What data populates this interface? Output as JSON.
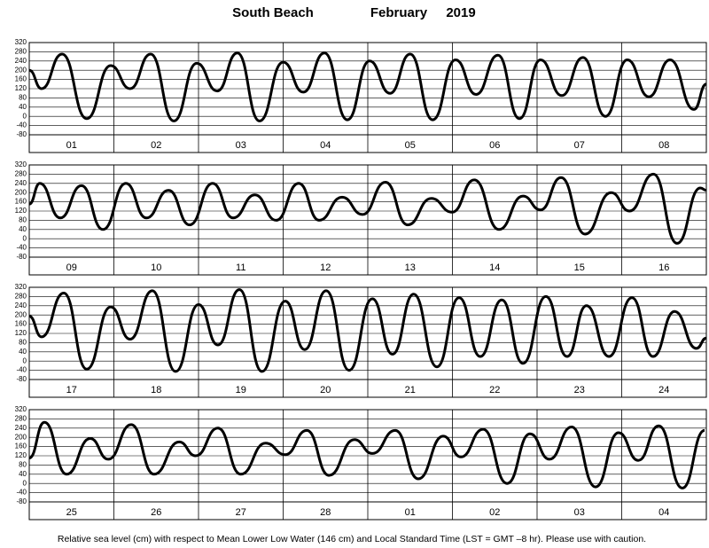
{
  "header": {
    "location": "South Beach",
    "month": "February",
    "year": "2019"
  },
  "footnote": "Relative sea level (cm) with respect to Mean Lower Low Water (146 cm) and Local Standard Time (LST = GMT –8 hr). Please use with caution.",
  "chart_data": [
    {
      "type": "line",
      "grid": true,
      "xlim": [
        0,
        192
      ],
      "ylim": [
        -80,
        320
      ],
      "yticks": [
        320,
        280,
        240,
        200,
        160,
        120,
        80,
        40,
        0,
        -40,
        -80
      ],
      "xticks": [
        {
          "value": 12,
          "label": "01"
        },
        {
          "value": 36,
          "label": "02"
        },
        {
          "value": 60,
          "label": "03"
        },
        {
          "value": 84,
          "label": "04"
        },
        {
          "value": 108,
          "label": "05"
        },
        {
          "value": 132,
          "label": "06"
        },
        {
          "value": 156,
          "label": "07"
        },
        {
          "value": 180,
          "label": "08"
        }
      ],
      "x": [
        0,
        3.5,
        9.3,
        16.3,
        23.1,
        28.6,
        34.4,
        41,
        47.5,
        53.3,
        59,
        65.3,
        72,
        77.7,
        83.7,
        90.2,
        96.5,
        102.3,
        108,
        114.4,
        120.9,
        126.7,
        132.9,
        139,
        145,
        151,
        157,
        163.4,
        169.6,
        175.7,
        181.7,
        188.5,
        192
      ],
      "series": [
        {
          "color": "#000000",
          "values": [
            200,
            120,
            270,
            -10,
            220,
            120,
            270,
            -20,
            230,
            110,
            275,
            -20,
            235,
            105,
            275,
            -15,
            240,
            100,
            270,
            -15,
            245,
            95,
            265,
            -10,
            245,
            90,
            255,
            0,
            245,
            85,
            245,
            30,
            140
          ]
        }
      ]
    },
    {
      "type": "line",
      "grid": true,
      "xlim": [
        0,
        192
      ],
      "ylim": [
        -80,
        320
      ],
      "yticks": [
        320,
        280,
        240,
        200,
        160,
        120,
        80,
        40,
        0,
        -40,
        -80
      ],
      "xticks": [
        {
          "value": 12,
          "label": "09"
        },
        {
          "value": 36,
          "label": "10"
        },
        {
          "value": 60,
          "label": "11"
        },
        {
          "value": 84,
          "label": "12"
        },
        {
          "value": 108,
          "label": "13"
        },
        {
          "value": 132,
          "label": "14"
        },
        {
          "value": 156,
          "label": "15"
        },
        {
          "value": 180,
          "label": "16"
        }
      ],
      "x": [
        0,
        3,
        8.8,
        14.8,
        20.9,
        27.4,
        33.2,
        39.5,
        45.5,
        52,
        57.8,
        64,
        70,
        76.4,
        82.2,
        88.7,
        94.5,
        101,
        107.3,
        114,
        119.9,
        126.2,
        133.2,
        140,
        145,
        150.8,
        157.6,
        165,
        170.2,
        177,
        183.7,
        190.3,
        192
      ],
      "series": [
        {
          "color": "#000000",
          "values": [
            150,
            240,
            90,
            230,
            40,
            240,
            90,
            210,
            60,
            240,
            90,
            190,
            80,
            240,
            80,
            180,
            105,
            245,
            60,
            175,
            115,
            255,
            40,
            185,
            125,
            265,
            20,
            200,
            120,
            280,
            -20,
            220,
            210
          ]
        }
      ]
    },
    {
      "type": "line",
      "grid": true,
      "xlim": [
        0,
        192
      ],
      "ylim": [
        -80,
        320
      ],
      "yticks": [
        320,
        280,
        240,
        200,
        160,
        120,
        80,
        40,
        0,
        -40,
        -80
      ],
      "xticks": [
        {
          "value": 12,
          "label": "17"
        },
        {
          "value": 36,
          "label": "18"
        },
        {
          "value": 60,
          "label": "19"
        },
        {
          "value": 84,
          "label": "20"
        },
        {
          "value": 108,
          "label": "21"
        },
        {
          "value": 132,
          "label": "22"
        },
        {
          "value": 156,
          "label": "23"
        },
        {
          "value": 180,
          "label": "24"
        }
      ],
      "x": [
        0,
        3.5,
        9.8,
        16.3,
        23.1,
        28.6,
        34.9,
        41.5,
        48,
        53.5,
        59.6,
        66,
        72.6,
        78.1,
        84.2,
        90.7,
        97.3,
        103,
        109,
        115.6,
        121.9,
        127.9,
        134,
        140,
        146.5,
        152.5,
        158,
        164.4,
        170.9,
        176.9,
        183,
        189.2,
        192
      ],
      "series": [
        {
          "color": "#000000",
          "values": [
            195,
            105,
            295,
            -35,
            235,
            95,
            305,
            -45,
            245,
            70,
            310,
            -45,
            260,
            50,
            305,
            -40,
            270,
            30,
            290,
            -25,
            275,
            20,
            265,
            -10,
            280,
            20,
            240,
            20,
            275,
            20,
            215,
            55,
            100
          ]
        }
      ]
    },
    {
      "type": "line",
      "grid": true,
      "xlim": [
        0,
        192
      ],
      "ylim": [
        -80,
        320
      ],
      "yticks": [
        320,
        280,
        240,
        200,
        160,
        120,
        80,
        40,
        0,
        -40,
        -80
      ],
      "xticks": [
        {
          "value": 12,
          "label": "25"
        },
        {
          "value": 36,
          "label": "26"
        },
        {
          "value": 60,
          "label": "27"
        },
        {
          "value": 84,
          "label": "28"
        },
        {
          "value": 108,
          "label": "01"
        },
        {
          "value": 132,
          "label": "02"
        },
        {
          "value": 156,
          "label": "03"
        },
        {
          "value": 180,
          "label": "04"
        }
      ],
      "x": [
        0,
        4.3,
        10.6,
        17.3,
        22.4,
        28.9,
        35.4,
        42.5,
        47.2,
        53.5,
        60,
        67,
        72.6,
        78.7,
        85,
        92.2,
        97.3,
        103.8,
        110.3,
        117.4,
        122.4,
        128.7,
        135.5,
        142,
        147.5,
        153.8,
        160.6,
        167.1,
        172.7,
        178.5,
        185.2,
        191.5
      ],
      "series": [
        {
          "color": "#000000",
          "values": [
            110,
            265,
            40,
            195,
            105,
            255,
            40,
            180,
            120,
            240,
            40,
            175,
            125,
            230,
            35,
            190,
            130,
            230,
            20,
            205,
            115,
            235,
            0,
            215,
            105,
            245,
            -15,
            220,
            100,
            250,
            -20,
            230
          ]
        }
      ]
    }
  ]
}
